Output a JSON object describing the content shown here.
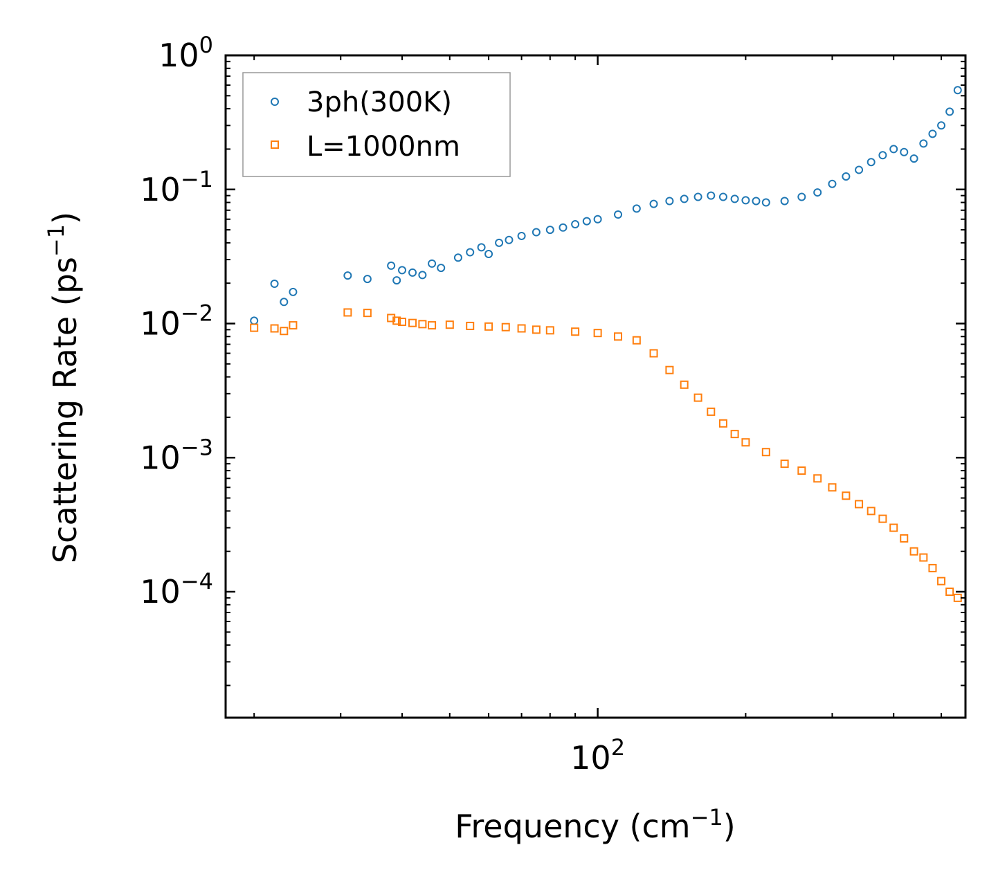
{
  "chart_data": {
    "type": "scatter",
    "title": "",
    "xlabel": "Frequency (cm",
    "xlabel_sup": "−1",
    "xlabel_end": ")",
    "ylabel": "Scattering Rate (ps",
    "ylabel_sup": "−1",
    "ylabel_end": ")",
    "xscale": "log",
    "yscale": "log",
    "xlim": [
      17.5,
      560
    ],
    "ylim": [
      1.15e-05,
      1.0
    ],
    "x_ticks": [
      {
        "value": 100,
        "base": "10",
        "exp": "2"
      }
    ],
    "y_ticks": [
      {
        "value": 1.0,
        "base": "10",
        "exp": "0"
      },
      {
        "value": 0.1,
        "base": "10",
        "exp": "−1"
      },
      {
        "value": 0.01,
        "base": "10",
        "exp": "−2"
      },
      {
        "value": 0.001,
        "base": "10",
        "exp": "−3"
      },
      {
        "value": 0.0001,
        "base": "10",
        "exp": "−4"
      }
    ],
    "legend_position": "top-left",
    "series": [
      {
        "name": "3ph(300K)",
        "marker": "circle",
        "color": "#1f77b4",
        "x": [
          20,
          22,
          23,
          24,
          31,
          34,
          38,
          39,
          40,
          42,
          44,
          46,
          48,
          52,
          55,
          58,
          60,
          63,
          66,
          70,
          75,
          80,
          85,
          90,
          95,
          100,
          110,
          120,
          130,
          140,
          150,
          160,
          170,
          180,
          190,
          200,
          210,
          220,
          240,
          260,
          280,
          300,
          320,
          340,
          360,
          380,
          400,
          420,
          440,
          460,
          480,
          500,
          520,
          540
        ],
        "y": [
          0.0105,
          0.0198,
          0.0145,
          0.0172,
          0.0228,
          0.0215,
          0.027,
          0.021,
          0.025,
          0.024,
          0.023,
          0.028,
          0.026,
          0.031,
          0.034,
          0.037,
          0.033,
          0.04,
          0.042,
          0.045,
          0.048,
          0.05,
          0.052,
          0.055,
          0.058,
          0.06,
          0.065,
          0.072,
          0.078,
          0.082,
          0.085,
          0.088,
          0.09,
          0.088,
          0.085,
          0.083,
          0.082,
          0.08,
          0.082,
          0.088,
          0.095,
          0.11,
          0.125,
          0.14,
          0.16,
          0.18,
          0.2,
          0.19,
          0.17,
          0.22,
          0.26,
          0.3,
          0.38,
          0.55
        ]
      },
      {
        "name": "L=1000nm",
        "marker": "square",
        "color": "#ff7f0e",
        "x": [
          20,
          22,
          23,
          24,
          31,
          34,
          38,
          39,
          40,
          42,
          44,
          46,
          50,
          55,
          60,
          65,
          70,
          75,
          80,
          90,
          100,
          110,
          120,
          130,
          140,
          150,
          160,
          170,
          180,
          190,
          200,
          220,
          240,
          260,
          280,
          300,
          320,
          340,
          360,
          380,
          400,
          420,
          440,
          460,
          480,
          500,
          520,
          540
        ],
        "y": [
          0.0093,
          0.0092,
          0.0088,
          0.0097,
          0.0121,
          0.012,
          0.011,
          0.0105,
          0.0103,
          0.0101,
          0.0099,
          0.0097,
          0.0098,
          0.0096,
          0.0095,
          0.0094,
          0.0092,
          0.009,
          0.0089,
          0.0087,
          0.0085,
          0.008,
          0.0075,
          0.006,
          0.0045,
          0.0035,
          0.0028,
          0.0022,
          0.0018,
          0.0015,
          0.0013,
          0.0011,
          0.0009,
          0.0008,
          0.0007,
          0.0006,
          0.00052,
          0.00045,
          0.0004,
          0.00035,
          0.0003,
          0.00025,
          0.0002,
          0.00018,
          0.00015,
          0.00012,
          0.0001,
          9e-05
        ]
      }
    ]
  }
}
